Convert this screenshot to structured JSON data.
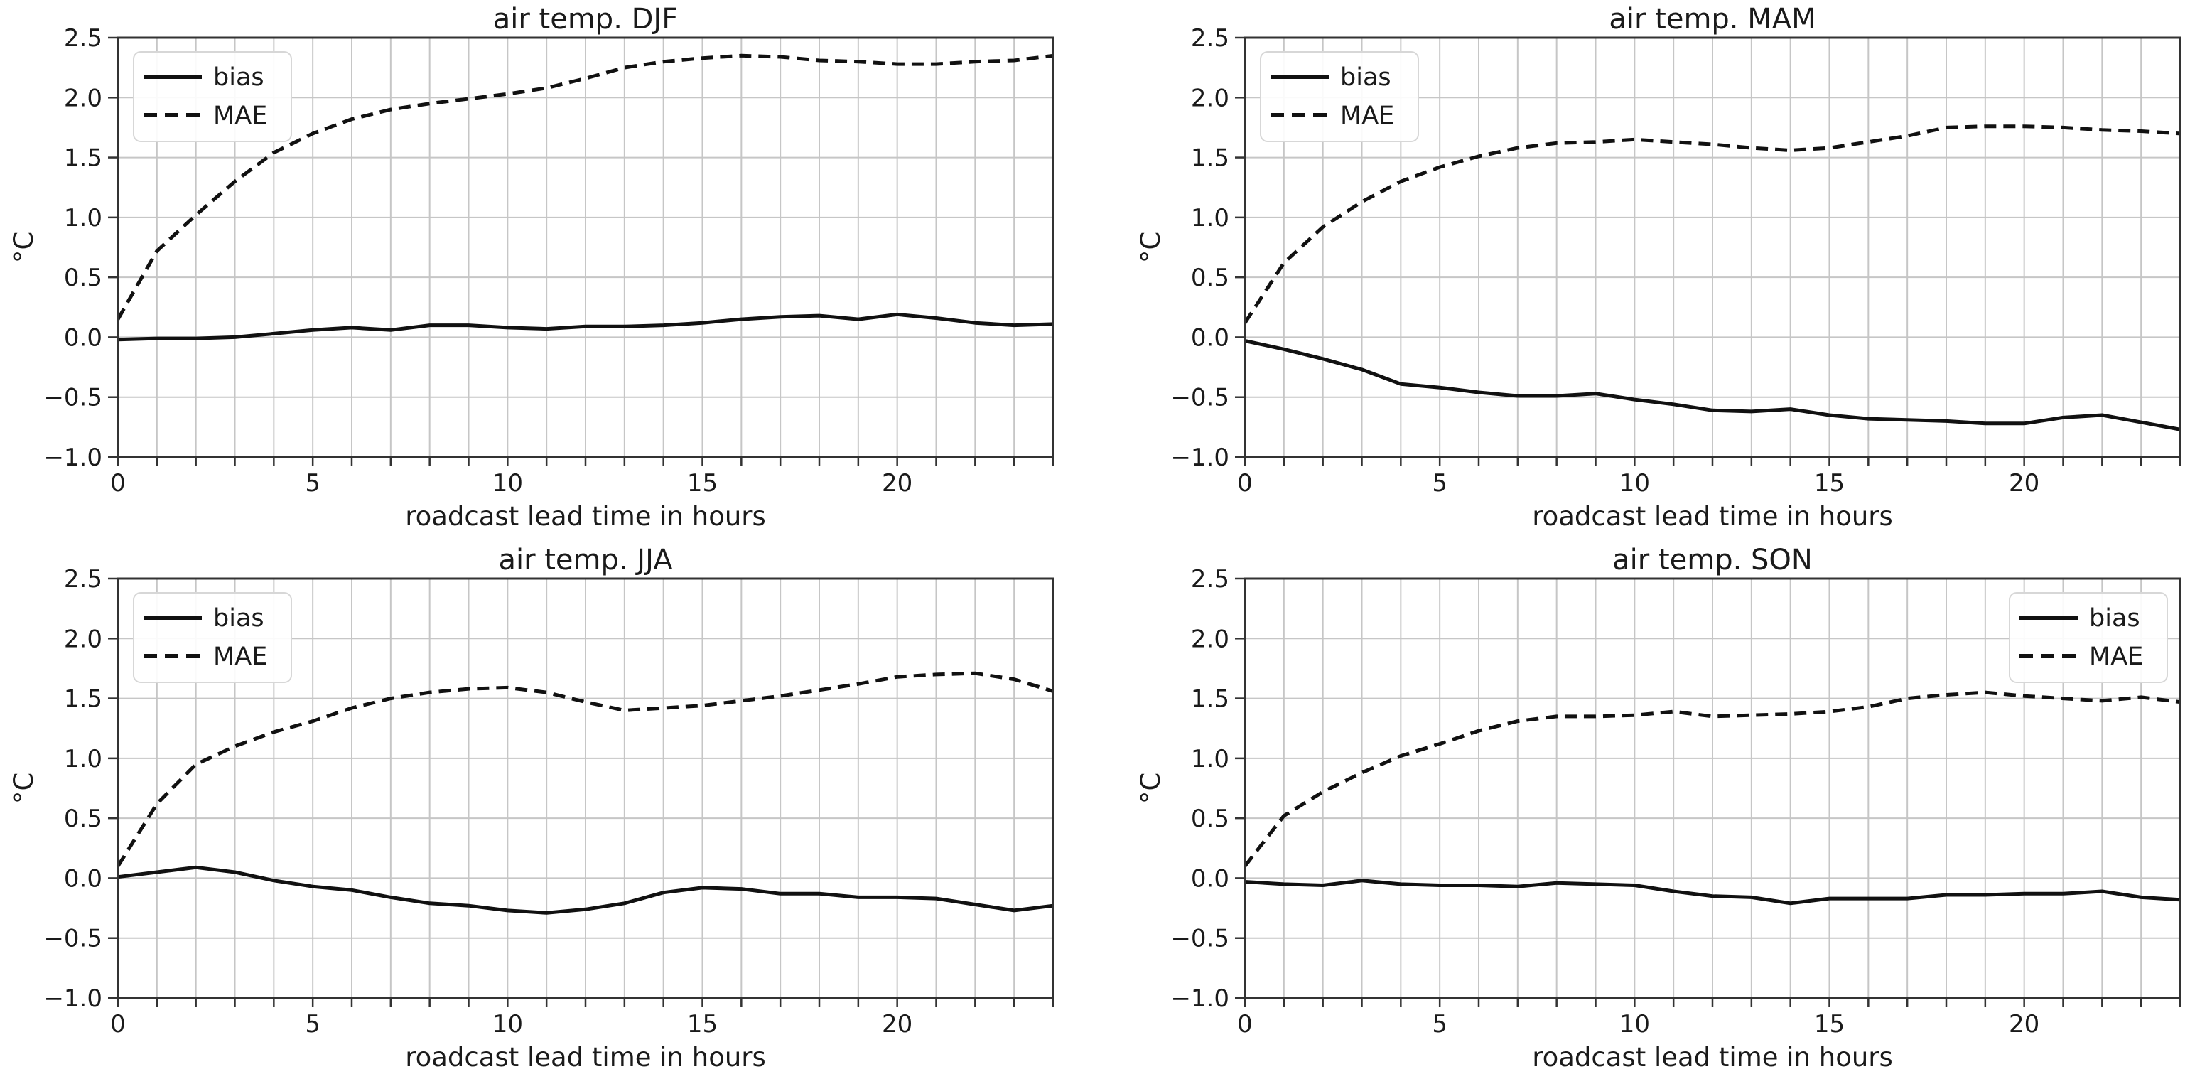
{
  "figure": {
    "description": "2x2 grid of seasonal air temperature verification plots (bias and MAE vs roadcast lead time)"
  },
  "colors": {
    "background": "#ffffff",
    "line": "#111111",
    "grid": "#c6c6c6",
    "spine": "#333333",
    "text": "#1a1a1a",
    "legend_border": "#d7d7d7",
    "legend_background": "#ffffff"
  },
  "chart_data": [
    {
      "type": "line",
      "title": "air temp. DJF",
      "xlabel": "roadcast lead time in hours",
      "ylabel": "°C",
      "xlim": [
        0,
        24
      ],
      "ylim": [
        -1.0,
        2.5
      ],
      "grid": true,
      "xticks": [
        0,
        5,
        10,
        15,
        20
      ],
      "xtick_labels": [
        "0",
        "5",
        "10",
        "15",
        "20"
      ],
      "minor_xtick_step": 1,
      "yticks": [
        2.5,
        2.0,
        1.5,
        1.0,
        0.5,
        0.0,
        -0.5,
        -1.0
      ],
      "ytick_labels": [
        "2.5",
        "2.0",
        "1.5",
        "1.0",
        "0.5",
        "0.0",
        "−0.5",
        "−1.0"
      ],
      "legend": {
        "loc": "upper left",
        "entries": [
          "bias",
          "MAE"
        ]
      },
      "x": [
        0,
        1,
        2,
        3,
        4,
        5,
        6,
        7,
        8,
        9,
        10,
        11,
        12,
        13,
        14,
        15,
        16,
        17,
        18,
        19,
        20,
        21,
        22,
        23,
        24
      ],
      "series": [
        {
          "name": "bias",
          "style": "solid",
          "values": [
            -0.02,
            -0.01,
            -0.01,
            0.0,
            0.03,
            0.06,
            0.08,
            0.06,
            0.1,
            0.1,
            0.08,
            0.07,
            0.09,
            0.09,
            0.1,
            0.12,
            0.15,
            0.17,
            0.18,
            0.15,
            0.19,
            0.16,
            0.12,
            0.1,
            0.11
          ]
        },
        {
          "name": "MAE",
          "style": "dashed",
          "values": [
            0.15,
            0.72,
            1.02,
            1.3,
            1.54,
            1.7,
            1.82,
            1.9,
            1.95,
            1.99,
            2.03,
            2.08,
            2.16,
            2.25,
            2.3,
            2.33,
            2.35,
            2.34,
            2.31,
            2.3,
            2.28,
            2.28,
            2.3,
            2.31,
            2.35
          ]
        }
      ]
    },
    {
      "type": "line",
      "title": "air temp. MAM",
      "xlabel": "roadcast lead time in hours",
      "ylabel": "°C",
      "xlim": [
        0,
        24
      ],
      "ylim": [
        -1.0,
        2.5
      ],
      "grid": true,
      "xticks": [
        0,
        5,
        10,
        15,
        20
      ],
      "xtick_labels": [
        "0",
        "5",
        "10",
        "15",
        "20"
      ],
      "minor_xtick_step": 1,
      "yticks": [
        2.5,
        2.0,
        1.5,
        1.0,
        0.5,
        0.0,
        -0.5,
        -1.0
      ],
      "ytick_labels": [
        "2.5",
        "2.0",
        "1.5",
        "1.0",
        "0.5",
        "0.0",
        "−0.5",
        "−1.0"
      ],
      "legend": {
        "loc": "upper left",
        "entries": [
          "bias",
          "MAE"
        ]
      },
      "x": [
        0,
        1,
        2,
        3,
        4,
        5,
        6,
        7,
        8,
        9,
        10,
        11,
        12,
        13,
        14,
        15,
        16,
        17,
        18,
        19,
        20,
        21,
        22,
        23,
        24
      ],
      "series": [
        {
          "name": "bias",
          "style": "solid",
          "values": [
            -0.03,
            -0.1,
            -0.18,
            -0.27,
            -0.39,
            -0.42,
            -0.46,
            -0.49,
            -0.49,
            -0.47,
            -0.52,
            -0.56,
            -0.61,
            -0.62,
            -0.6,
            -0.65,
            -0.68,
            -0.69,
            -0.7,
            -0.72,
            -0.72,
            -0.67,
            -0.65,
            -0.71,
            -0.77
          ]
        },
        {
          "name": "MAE",
          "style": "dashed",
          "values": [
            0.12,
            0.62,
            0.92,
            1.13,
            1.3,
            1.42,
            1.51,
            1.58,
            1.62,
            1.63,
            1.65,
            1.63,
            1.61,
            1.58,
            1.56,
            1.58,
            1.63,
            1.68,
            1.75,
            1.76,
            1.76,
            1.75,
            1.73,
            1.72,
            1.7
          ]
        }
      ]
    },
    {
      "type": "line",
      "title": "air temp. JJA",
      "xlabel": "roadcast lead time in hours",
      "ylabel": "°C",
      "xlim": [
        0,
        24
      ],
      "ylim": [
        -1.0,
        2.5
      ],
      "grid": true,
      "xticks": [
        0,
        5,
        10,
        15,
        20
      ],
      "xtick_labels": [
        "0",
        "5",
        "10",
        "15",
        "20"
      ],
      "minor_xtick_step": 1,
      "yticks": [
        2.5,
        2.0,
        1.5,
        1.0,
        0.5,
        0.0,
        -0.5,
        -1.0
      ],
      "ytick_labels": [
        "2.5",
        "2.0",
        "1.5",
        "1.0",
        "0.5",
        "0.0",
        "−0.5",
        "−1.0"
      ],
      "legend": {
        "loc": "upper left",
        "entries": [
          "bias",
          "MAE"
        ]
      },
      "x": [
        0,
        1,
        2,
        3,
        4,
        5,
        6,
        7,
        8,
        9,
        10,
        11,
        12,
        13,
        14,
        15,
        16,
        17,
        18,
        19,
        20,
        21,
        22,
        23,
        24
      ],
      "series": [
        {
          "name": "bias",
          "style": "solid",
          "values": [
            0.01,
            0.05,
            0.09,
            0.05,
            -0.02,
            -0.07,
            -0.1,
            -0.16,
            -0.21,
            -0.23,
            -0.27,
            -0.29,
            -0.26,
            -0.21,
            -0.12,
            -0.08,
            -0.09,
            -0.13,
            -0.13,
            -0.16,
            -0.16,
            -0.17,
            -0.22,
            -0.27,
            -0.23
          ]
        },
        {
          "name": "MAE",
          "style": "dashed",
          "values": [
            0.1,
            0.62,
            0.95,
            1.1,
            1.22,
            1.31,
            1.42,
            1.5,
            1.55,
            1.58,
            1.59,
            1.55,
            1.47,
            1.4,
            1.42,
            1.44,
            1.48,
            1.52,
            1.57,
            1.62,
            1.68,
            1.7,
            1.71,
            1.66,
            1.56
          ]
        }
      ]
    },
    {
      "type": "line",
      "title": "air temp. SON",
      "xlabel": "roadcast lead time in hours",
      "ylabel": "°C",
      "xlim": [
        0,
        24
      ],
      "ylim": [
        -1.0,
        2.5
      ],
      "grid": true,
      "xticks": [
        0,
        5,
        10,
        15,
        20
      ],
      "xtick_labels": [
        "0",
        "5",
        "10",
        "15",
        "20"
      ],
      "minor_xtick_step": 1,
      "yticks": [
        2.5,
        2.0,
        1.5,
        1.0,
        0.5,
        0.0,
        -0.5,
        -1.0
      ],
      "ytick_labels": [
        "2.5",
        "2.0",
        "1.5",
        "1.0",
        "0.5",
        "0.0",
        "−0.5",
        "−1.0"
      ],
      "legend": {
        "loc": "upper right",
        "entries": [
          "bias",
          "MAE"
        ]
      },
      "x": [
        0,
        1,
        2,
        3,
        4,
        5,
        6,
        7,
        8,
        9,
        10,
        11,
        12,
        13,
        14,
        15,
        16,
        17,
        18,
        19,
        20,
        21,
        22,
        23,
        24
      ],
      "series": [
        {
          "name": "bias",
          "style": "solid",
          "values": [
            -0.03,
            -0.05,
            -0.06,
            -0.02,
            -0.05,
            -0.06,
            -0.06,
            -0.07,
            -0.04,
            -0.05,
            -0.06,
            -0.11,
            -0.15,
            -0.16,
            -0.21,
            -0.17,
            -0.17,
            -0.17,
            -0.14,
            -0.14,
            -0.13,
            -0.13,
            -0.11,
            -0.16,
            -0.18
          ]
        },
        {
          "name": "MAE",
          "style": "dashed",
          "values": [
            0.1,
            0.52,
            0.72,
            0.88,
            1.02,
            1.12,
            1.23,
            1.31,
            1.35,
            1.35,
            1.36,
            1.39,
            1.35,
            1.36,
            1.37,
            1.39,
            1.43,
            1.5,
            1.53,
            1.55,
            1.52,
            1.5,
            1.48,
            1.51,
            1.47
          ]
        }
      ]
    }
  ]
}
